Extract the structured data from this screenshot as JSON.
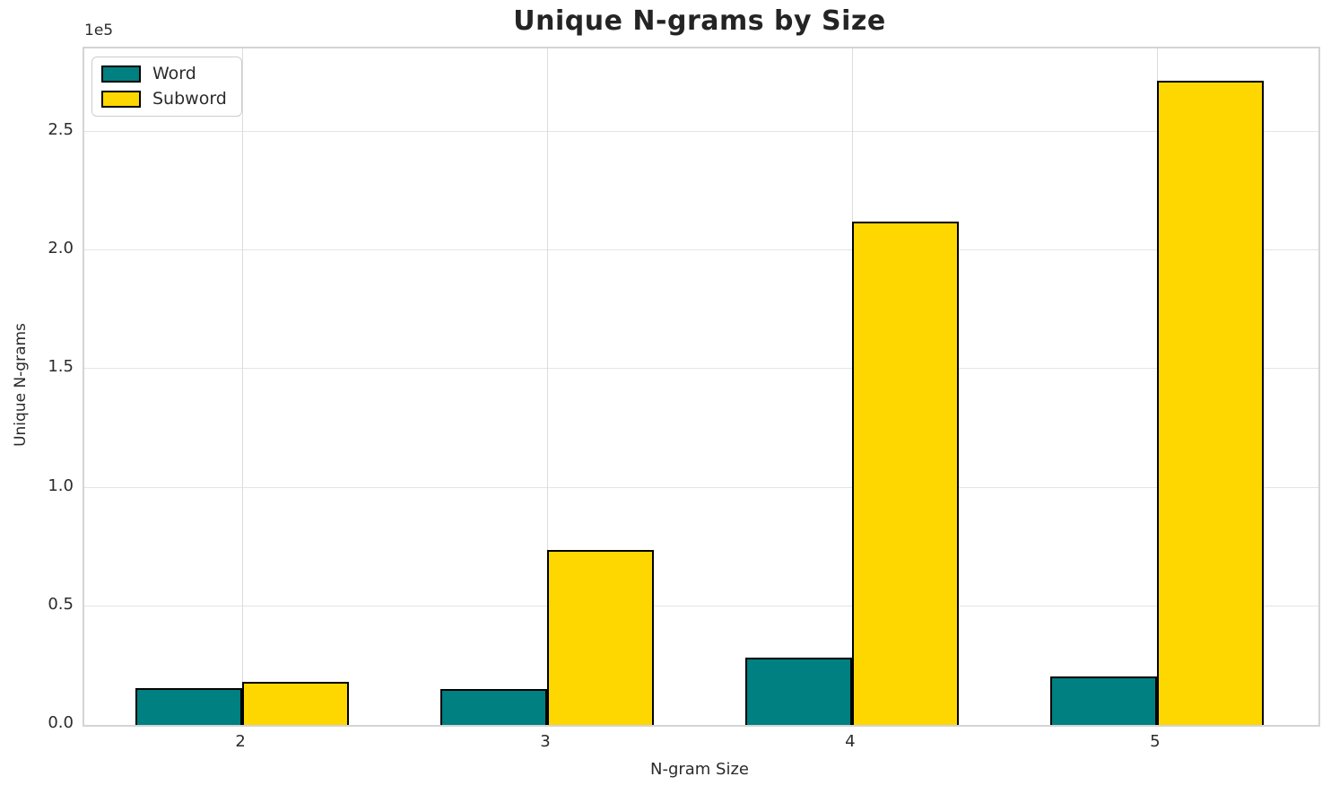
{
  "title": "Unique N-grams by Size",
  "legend": {
    "items": [
      {
        "label": "Word",
        "color": "#008080"
      },
      {
        "label": "Subword",
        "color": "#FFD700"
      }
    ]
  },
  "chart_data": {
    "type": "bar",
    "title": "Unique N-grams by Size",
    "xlabel": "N-gram Size",
    "ylabel": "Unique N-grams",
    "y_offset_text": "1e5",
    "categories": [
      "2",
      "3",
      "4",
      "5"
    ],
    "x_values": [
      2,
      3,
      4,
      5
    ],
    "series": [
      {
        "name": "Word",
        "color": "#008080",
        "values": [
          15500,
          15100,
          28500,
          20600
        ]
      },
      {
        "name": "Subword",
        "color": "#FFD700",
        "values": [
          18200,
          73800,
          212200,
          271700
        ]
      }
    ],
    "bar_width": 0.35,
    "bar_edge_color": "#000000",
    "xlim": [
      1.482,
      5.53
    ],
    "ylim": [
      0,
      285200
    ],
    "y_ticks": [
      {
        "label": "0.0",
        "value": 0
      },
      {
        "label": "0.5",
        "value": 50000
      },
      {
        "label": "1.0",
        "value": 100000
      },
      {
        "label": "1.5",
        "value": 150000
      },
      {
        "label": "2.0",
        "value": 200000
      },
      {
        "label": "2.5",
        "value": 250000
      }
    ],
    "grid": true,
    "legend_position": "upper left"
  }
}
